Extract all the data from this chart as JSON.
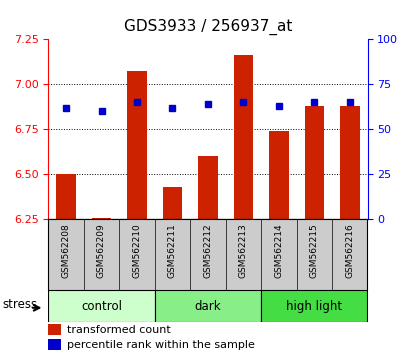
{
  "title": "GDS3933 / 256937_at",
  "samples": [
    "GSM562208",
    "GSM562209",
    "GSM562210",
    "GSM562211",
    "GSM562212",
    "GSM562213",
    "GSM562214",
    "GSM562215",
    "GSM562216"
  ],
  "transformed_count": [
    6.5,
    6.26,
    7.07,
    6.43,
    6.6,
    7.16,
    6.74,
    6.88,
    6.88
  ],
  "percentile_rank": [
    62,
    60,
    65,
    62,
    64,
    65,
    63,
    65,
    65
  ],
  "ylim_left": [
    6.25,
    7.25
  ],
  "ylim_right": [
    0,
    100
  ],
  "yticks_left": [
    6.25,
    6.5,
    6.75,
    7.0,
    7.25
  ],
  "yticks_right": [
    0,
    25,
    50,
    75,
    100
  ],
  "groups": [
    {
      "label": "control",
      "start": 0,
      "end": 3,
      "color": "#ccffcc"
    },
    {
      "label": "dark",
      "start": 3,
      "end": 6,
      "color": "#88ee88"
    },
    {
      "label": "high light",
      "start": 6,
      "end": 9,
      "color": "#44dd44"
    }
  ],
  "bar_color": "#cc2200",
  "dot_color": "#0000cc",
  "bar_bottom": 6.25,
  "bar_width": 0.55,
  "stress_label": "stress",
  "legend_tc": "transformed count",
  "legend_pr": "percentile rank within the sample",
  "background_label": "#cccccc",
  "title_fontsize": 11,
  "gridline_ticks": [
    6.5,
    6.75,
    7.0
  ]
}
